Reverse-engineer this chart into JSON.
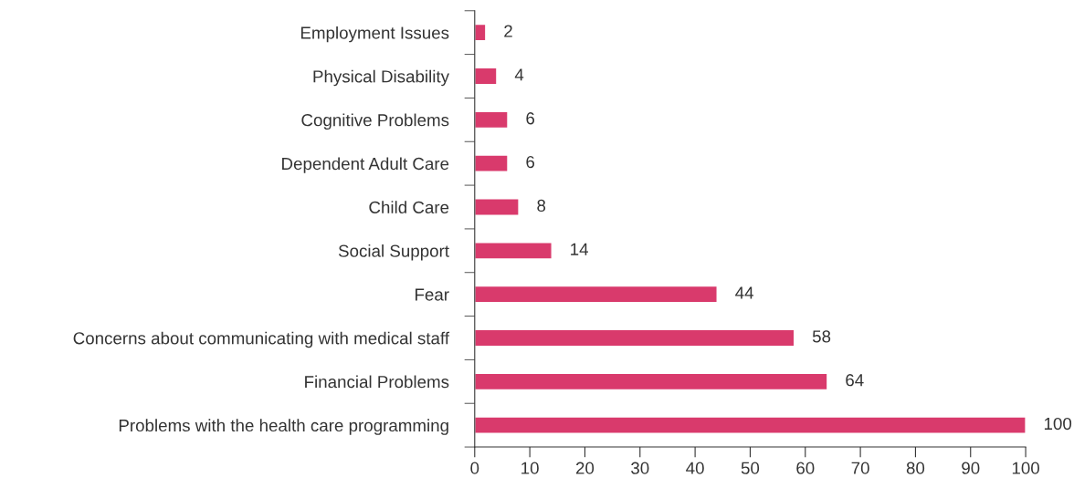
{
  "chart_data": {
    "type": "bar",
    "orientation": "horizontal",
    "categories": [
      "Employment Issues",
      "Physical Disability",
      "Cognitive Problems",
      "Dependent Adult Care",
      "Child Care",
      "Social Support",
      "Fear",
      "Concerns about communicating with medical staff",
      "Financial Problems",
      "Problems with the health care programming"
    ],
    "values": [
      2,
      4,
      6,
      6,
      8,
      14,
      44,
      58,
      64,
      100
    ],
    "color": "#d93a6c",
    "xlim": [
      0,
      100
    ],
    "xticks": [
      0,
      10,
      20,
      30,
      40,
      50,
      60,
      70,
      80,
      90,
      100
    ],
    "data_labels": true,
    "grid": false,
    "legend": false
  }
}
